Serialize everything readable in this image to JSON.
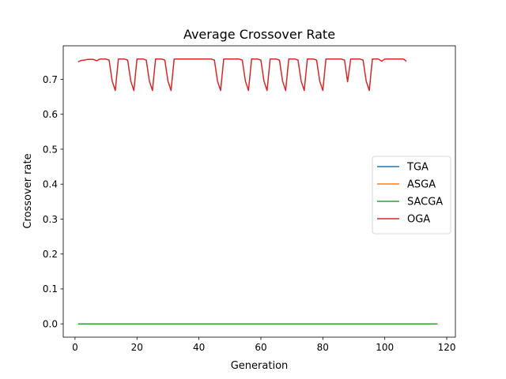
{
  "chart_data": {
    "type": "line",
    "title": "Average Crossover Rate",
    "xlabel": "Generation",
    "ylabel": "Crossover rate",
    "xlim": [
      -3.8,
      122.8
    ],
    "ylim": [
      -0.038,
      0.796
    ],
    "xticks": [
      {
        "value": 0,
        "label": "0"
      },
      {
        "value": 20,
        "label": "20"
      },
      {
        "value": 40,
        "label": "40"
      },
      {
        "value": 60,
        "label": "60"
      },
      {
        "value": 80,
        "label": "80"
      },
      {
        "value": 100,
        "label": "100"
      },
      {
        "value": 120,
        "label": "120"
      }
    ],
    "yticks": [
      {
        "value": 0.0,
        "label": "0.0"
      },
      {
        "value": 0.1,
        "label": "0.1"
      },
      {
        "value": 0.2,
        "label": "0.2"
      },
      {
        "value": 0.3,
        "label": "0.3"
      },
      {
        "value": 0.4,
        "label": "0.4"
      },
      {
        "value": 0.5,
        "label": "0.5"
      },
      {
        "value": 0.6,
        "label": "0.6"
      },
      {
        "value": 0.7,
        "label": "0.7"
      }
    ],
    "grid": false,
    "legend": "center-right",
    "series": [
      {
        "name": "TGA",
        "color": "#1f77b4",
        "x": [
          1,
          117
        ],
        "y": [
          0.0,
          0.0
        ]
      },
      {
        "name": "ASGA",
        "color": "#ff7f0e",
        "x": [
          1,
          117
        ],
        "y": [
          0.0,
          0.0
        ]
      },
      {
        "name": "SACGA",
        "color": "#2ca02c",
        "x": [
          1,
          117
        ],
        "y": [
          0.0,
          0.0
        ]
      },
      {
        "name": "OGA",
        "color": "#d62728",
        "x": [
          1,
          2,
          3,
          4,
          5,
          6,
          7,
          8,
          9,
          10,
          11,
          12,
          13,
          14,
          15,
          16,
          17,
          18,
          19,
          20,
          21,
          22,
          23,
          24,
          25,
          26,
          27,
          28,
          29,
          30,
          31,
          32,
          33,
          34,
          35,
          36,
          37,
          38,
          39,
          40,
          41,
          42,
          43,
          44,
          45,
          46,
          47,
          48,
          49,
          50,
          51,
          52,
          53,
          54,
          55,
          56,
          57,
          58,
          59,
          60,
          61,
          62,
          63,
          64,
          65,
          66,
          67,
          68,
          69,
          70,
          71,
          72,
          73,
          74,
          75,
          76,
          77,
          78,
          79,
          80,
          81,
          82,
          83,
          84,
          85,
          86,
          87,
          88,
          89,
          90,
          91,
          92,
          93,
          94,
          95,
          96,
          97,
          98,
          99,
          100,
          101,
          102,
          103,
          104,
          105,
          106,
          107
        ],
        "y": [
          0.75,
          0.754,
          0.755,
          0.757,
          0.757,
          0.757,
          0.753,
          0.758,
          0.758,
          0.758,
          0.755,
          0.695,
          0.668,
          0.758,
          0.758,
          0.758,
          0.755,
          0.695,
          0.668,
          0.758,
          0.758,
          0.758,
          0.755,
          0.695,
          0.668,
          0.758,
          0.758,
          0.758,
          0.755,
          0.695,
          0.668,
          0.758,
          0.758,
          0.758,
          0.758,
          0.758,
          0.758,
          0.758,
          0.758,
          0.758,
          0.758,
          0.758,
          0.758,
          0.758,
          0.755,
          0.695,
          0.668,
          0.758,
          0.758,
          0.758,
          0.758,
          0.758,
          0.758,
          0.755,
          0.695,
          0.668,
          0.758,
          0.758,
          0.758,
          0.755,
          0.695,
          0.668,
          0.758,
          0.758,
          0.758,
          0.755,
          0.695,
          0.668,
          0.758,
          0.758,
          0.758,
          0.755,
          0.695,
          0.668,
          0.758,
          0.758,
          0.758,
          0.755,
          0.695,
          0.668,
          0.758,
          0.758,
          0.758,
          0.758,
          0.758,
          0.758,
          0.755,
          0.693,
          0.758,
          0.758,
          0.758,
          0.758,
          0.755,
          0.695,
          0.668,
          0.758,
          0.758,
          0.758,
          0.752,
          0.758,
          0.758,
          0.758,
          0.758,
          0.758,
          0.758,
          0.758,
          0.752
        ]
      }
    ]
  }
}
